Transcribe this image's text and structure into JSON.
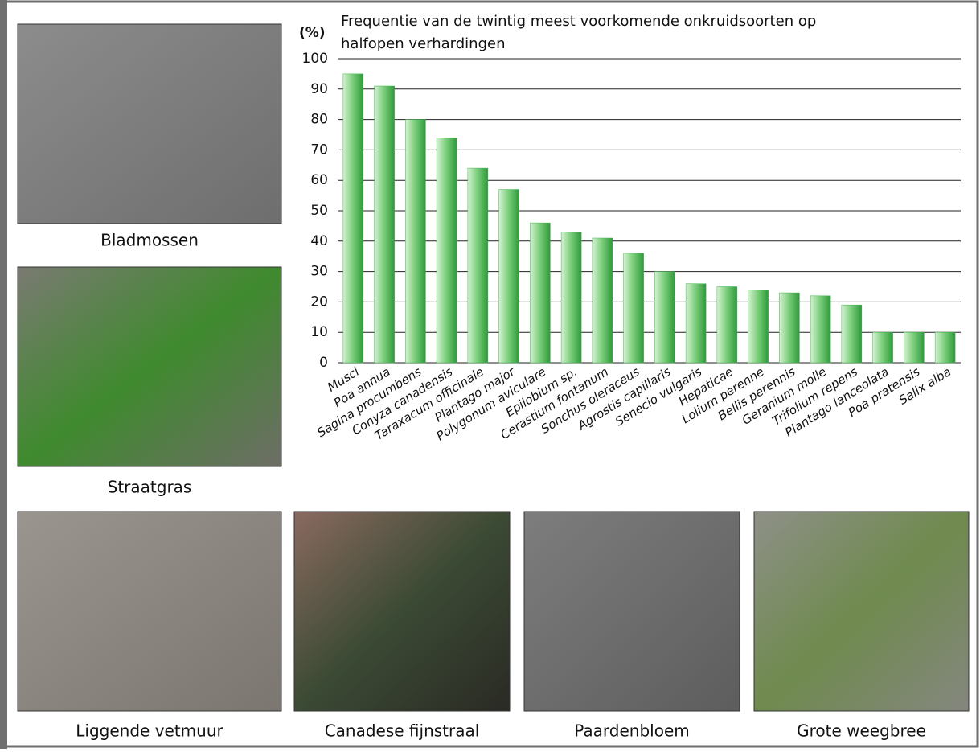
{
  "photos": [
    {
      "caption": "Bladmossen"
    },
    {
      "caption": "Straatgras"
    },
    {
      "caption": "Liggende vetmuur"
    },
    {
      "caption": "Canadese fijnstraal"
    },
    {
      "caption": "Paardenbloem"
    },
    {
      "caption": "Grote weegbree"
    }
  ],
  "chart_data": {
    "type": "bar",
    "title": "Frequentie van de twintig meest voorkomende onkruidsoorten op halfopen verhardingen",
    "y_label": "(%)",
    "categories": [
      "Musci",
      "Poa annua",
      "Sagina procumbens",
      "Conyza canadensis",
      "Taraxacum officinale",
      "Plantago major",
      "Polygonum aviculare",
      "Epilobium sp.",
      "Cerastium fontanum",
      "Sonchus oleraceus",
      "Agrostis capillaris",
      "Senecio vulgaris",
      "Hepaticae",
      "Lolium perenne",
      "Bellis perennis",
      "Geranium molle",
      "Trifolium repens",
      "Plantago lanceolata",
      "Poa pratensis",
      "Salix alba"
    ],
    "values": [
      95,
      91,
      80,
      74,
      64,
      57,
      46,
      43,
      41,
      36,
      30,
      26,
      25,
      24,
      23,
      22,
      19,
      10,
      10,
      10
    ],
    "color": "#3cb24a",
    "ylim": [
      0,
      100
    ],
    "yticks": [
      0,
      10,
      20,
      30,
      40,
      50,
      60,
      70,
      80,
      90,
      100
    ],
    "grid": true
  }
}
